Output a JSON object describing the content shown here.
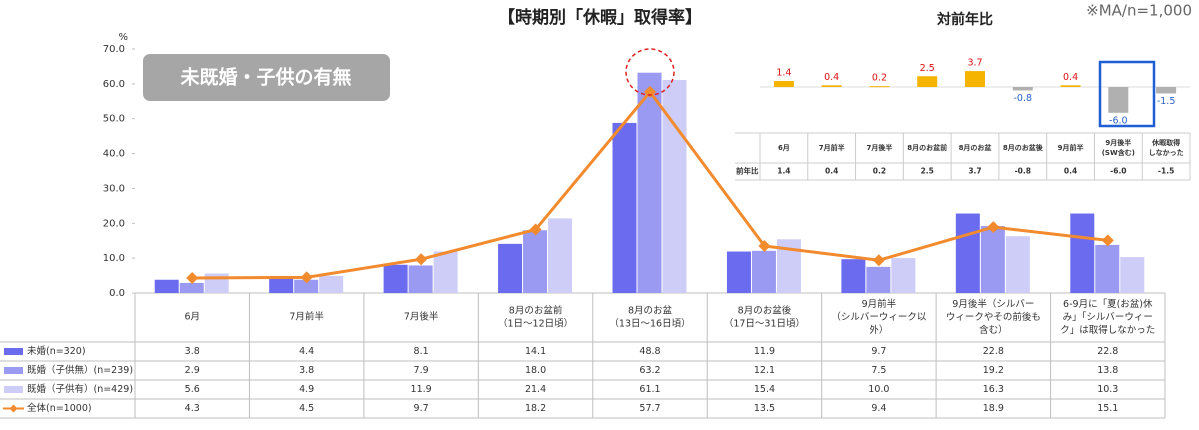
{
  "chart_data": [
    {
      "type": "bar",
      "title": "【時期別「休暇」取得率】",
      "note": "※MA/n=1,000",
      "badge": "未既婚・子供の有無",
      "unit_label": "%",
      "categories": [
        "6月",
        "7月前半",
        "7月後半",
        "8月のお盆前\n（1日～12日頃）",
        "8月のお盆\n（13日～16日頃）",
        "8月のお盆後\n（17日～31日頃）",
        "9月前半\n（シルバーウィーク以\n外）",
        "9月後半（シルバー\nウィークやその前後も\n含む）",
        "6-9月に「夏(お盆)休\nみ」「シルバーウィー\nク」は取得しなかった"
      ],
      "ylim": [
        0,
        70
      ],
      "yticks": [
        {
          "value": 0,
          "label": "0.0"
        },
        {
          "value": 10,
          "label": "10.0"
        },
        {
          "value": 20,
          "label": "20.0"
        },
        {
          "value": 30,
          "label": "30.0"
        },
        {
          "value": 40,
          "label": "40.0"
        },
        {
          "value": 50,
          "label": "50.0"
        },
        {
          "value": 60,
          "label": "60.0"
        },
        {
          "value": 70,
          "label": "70.0"
        }
      ],
      "grid": false,
      "series": [
        {
          "name": "未婚(n=320)",
          "type": "bar",
          "color": "#6b6bf0",
          "values": [
            3.8,
            4.4,
            8.1,
            14.1,
            48.8,
            11.9,
            9.7,
            22.8,
            22.8
          ],
          "value_labels": [
            "3.8",
            "4.4",
            "8.1",
            "14.1",
            "48.8",
            "11.9",
            "9.7",
            "22.8",
            "22.8"
          ]
        },
        {
          "name": "既婚（子供無）(n=239)",
          "type": "bar",
          "color": "#9a9af2",
          "values": [
            2.9,
            3.8,
            7.9,
            18.0,
            63.2,
            12.1,
            7.5,
            19.2,
            13.8
          ],
          "value_labels": [
            "2.9",
            "3.8",
            "7.9",
            "18.0",
            "63.2",
            "12.1",
            "7.5",
            "19.2",
            "13.8"
          ]
        },
        {
          "name": "既婚（子供有）(n=429)",
          "type": "bar",
          "color": "#cdcdf7",
          "values": [
            5.6,
            4.9,
            11.9,
            21.4,
            61.1,
            15.4,
            10.0,
            16.3,
            10.3
          ],
          "value_labels": [
            "5.6",
            "4.9",
            "11.9",
            "21.4",
            "61.1",
            "15.4",
            "10.0",
            "16.3",
            "10.3"
          ]
        },
        {
          "name": "全体(n=1000)",
          "type": "line",
          "color": "#f28a2e",
          "values": [
            4.3,
            4.5,
            9.7,
            18.2,
            57.7,
            13.5,
            9.4,
            18.9,
            15.1
          ],
          "value_labels": [
            "4.3",
            "4.5",
            "9.7",
            "18.2",
            "57.7",
            "13.5",
            "9.4",
            "18.9",
            "15.1"
          ]
        }
      ]
    },
    {
      "type": "bar",
      "title": "対前年比",
      "row_label": "前年比",
      "categories": [
        "6月",
        "7月前半",
        "7月後半",
        "8月のお盆前",
        "8月のお盆",
        "8月のお盆後",
        "9月前半",
        "9月後半\n(SW含む)",
        "休暇取得\nしなかった"
      ],
      "values": [
        1.4,
        0.4,
        0.2,
        2.5,
        3.7,
        -0.8,
        0.4,
        -6.0,
        -1.5
      ],
      "value_labels": [
        "1.4",
        "0.4",
        "0.2",
        "2.5",
        "3.7",
        "-0.8",
        "0.4",
        "-6.0",
        "-1.5"
      ],
      "ylim": [
        -10,
        10
      ],
      "positive_color": "#f5b400",
      "negative_color": "#b0b0b0"
    }
  ]
}
